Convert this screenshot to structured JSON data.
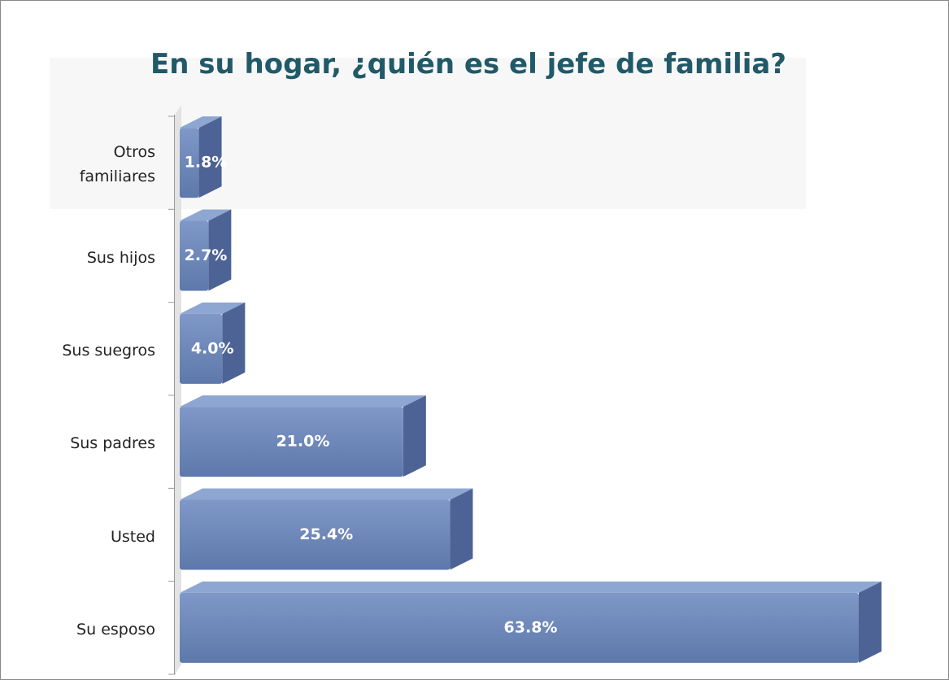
{
  "chart_data": {
    "type": "bar3d-horizontal",
    "title": "En su hogar, ¿quién es el jefe de familia?",
    "categories": [
      "Otros familiares",
      "Sus hijos",
      "Sus suegros",
      "Sus padres",
      "Usted",
      "Su esposo"
    ],
    "values": [
      1.8,
      2.7,
      4.0,
      21.0,
      25.4,
      63.8
    ],
    "value_labels": [
      "1.8%",
      "2.7%",
      "4.0%",
      "21.0%",
      "25.4%",
      "63.8%"
    ],
    "color": "#6f89bd"
  }
}
